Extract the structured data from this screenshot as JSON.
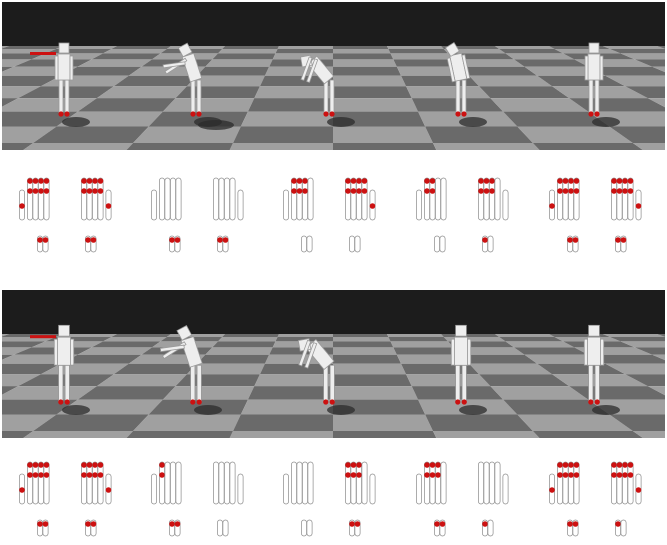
{
  "colors": {
    "sky": "#1c1c1c",
    "floor_dark": "#6a6a6a",
    "floor_light": "#a0a0a0",
    "shadow": "#2c2c2c",
    "body": "#eeeeee",
    "body_edge": "#9a9a9a",
    "contact": "#cc1111",
    "perturbation": "#cc1111",
    "finger_outline": "#8a8a8a",
    "background": "#ffffff"
  },
  "icons": {
    "agent": "humanoid-figure-icon",
    "contact": "red-contact-dot-icon",
    "push": "red-force-arrow-icon"
  },
  "panels": [
    {
      "name": "top",
      "frames": [
        {
          "pose": "upright",
          "push": true,
          "shadow": 1
        },
        {
          "pose": "flail",
          "push": false,
          "shadow": 2
        },
        {
          "pose": "bend",
          "push": false,
          "shadow": 1
        },
        {
          "pose": "lean",
          "push": false,
          "shadow": 1
        },
        {
          "pose": "upright",
          "push": false,
          "shadow": 1
        }
      ],
      "contact_groups": [
        {
          "hands": [
            [
              1,
              1,
              1,
              1
            ],
            [
              1,
              1,
              1,
              1
            ]
          ],
          "feet": [
            [
              1,
              1
            ],
            [
              1,
              1
            ]
          ]
        },
        {
          "hands": [
            [
              0,
              0,
              0,
              0
            ],
            [
              0,
              0,
              0,
              0
            ]
          ],
          "feet": [
            [
              1,
              1
            ],
            [
              1,
              1
            ]
          ]
        },
        {
          "hands": [
            [
              1,
              1,
              1,
              0
            ],
            [
              1,
              1,
              1,
              1
            ]
          ],
          "feet": [
            [
              0,
              0
            ],
            [
              0,
              0
            ]
          ]
        },
        {
          "hands": [
            [
              1,
              1,
              0,
              0
            ],
            [
              1,
              1,
              1,
              0
            ]
          ],
          "feet": [
            [
              0,
              0
            ],
            [
              1,
              0
            ]
          ]
        },
        {
          "hands": [
            [
              1,
              1,
              1,
              1
            ],
            [
              1,
              1,
              1,
              1
            ]
          ],
          "feet": [
            [
              1,
              1
            ],
            [
              1,
              1
            ]
          ]
        }
      ]
    },
    {
      "name": "bottom",
      "frames": [
        {
          "pose": "upright",
          "push": true,
          "shadow": 1
        },
        {
          "pose": "flail",
          "push": false,
          "shadow": 1
        },
        {
          "pose": "bend",
          "push": false,
          "shadow": 1
        },
        {
          "pose": "upright",
          "push": false,
          "shadow": 1
        },
        {
          "pose": "upright",
          "push": false,
          "shadow": 1
        }
      ],
      "contact_groups": [
        {
          "hands": [
            [
              1,
              1,
              1,
              1
            ],
            [
              1,
              1,
              1,
              1
            ]
          ],
          "feet": [
            [
              1,
              1
            ],
            [
              1,
              1
            ]
          ]
        },
        {
          "hands": [
            [
              1,
              0,
              0,
              0
            ],
            [
              0,
              0,
              0,
              0
            ]
          ],
          "feet": [
            [
              1,
              1
            ],
            [
              0,
              0
            ]
          ]
        },
        {
          "hands": [
            [
              0,
              0,
              0,
              0
            ],
            [
              1,
              1,
              1,
              0
            ]
          ],
          "feet": [
            [
              0,
              0
            ],
            [
              1,
              1
            ]
          ]
        },
        {
          "hands": [
            [
              1,
              1,
              1,
              0
            ],
            [
              0,
              0,
              0,
              0
            ]
          ],
          "feet": [
            [
              1,
              1
            ],
            [
              1,
              0
            ]
          ]
        },
        {
          "hands": [
            [
              1,
              1,
              1,
              1
            ],
            [
              1,
              1,
              1,
              1
            ]
          ],
          "feet": [
            [
              1,
              1
            ],
            [
              1,
              0
            ]
          ]
        }
      ]
    }
  ]
}
